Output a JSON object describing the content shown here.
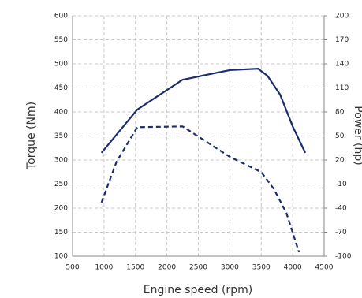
{
  "chart_data": {
    "type": "line",
    "x_label": "Engine speed (rpm)",
    "y_label": "Torque (Nm)",
    "y2_label": "Power (hp)",
    "xlim": [
      500,
      4500
    ],
    "xticks": [
      500,
      1000,
      1500,
      2000,
      2500,
      3000,
      3500,
      4000,
      4500
    ],
    "ylim": [
      100,
      600
    ],
    "yticks": [
      100,
      150,
      200,
      250,
      300,
      350,
      400,
      450,
      500,
      550,
      600
    ],
    "y2lim": [
      -100,
      200
    ],
    "y2ticks": [
      -100,
      -70,
      -40,
      -10,
      20,
      50,
      80,
      110,
      140,
      170,
      200
    ],
    "grid": true,
    "series": [
      {
        "name": "Torque",
        "color": "#1c2d6e",
        "dash": false,
        "x": [
          960,
          1530,
          2250,
          3000,
          3450,
          3600,
          3800,
          4000,
          4200
        ],
        "values": [
          315,
          405,
          467,
          487,
          490,
          475,
          436,
          370,
          315
        ]
      },
      {
        "name": "Power",
        "color": "#1c2d6e",
        "dash": true,
        "axis": "y2",
        "x": [
          960,
          1200,
          1530,
          2250,
          3000,
          3500,
          3700,
          3900,
          4100
        ],
        "values": [
          -33,
          18,
          61,
          62,
          24,
          5,
          -16,
          -46,
          -95
        ]
      }
    ]
  }
}
